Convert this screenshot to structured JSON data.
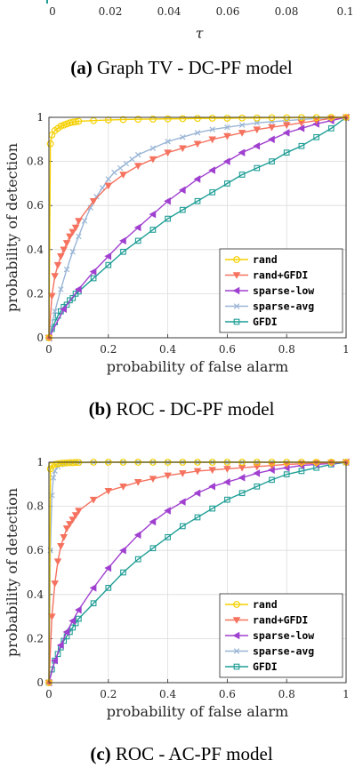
{
  "top_fragment": {
    "xticks": [
      "0",
      "0.02",
      "0.04",
      "0.06",
      "0.08",
      "0.1"
    ],
    "xlabel": "τ",
    "caption_tag": "(a)",
    "caption_text": "Graph TV - DC-PF model"
  },
  "series_colors": {
    "rand": "#f5d000",
    "rand+GFDI": "#f5725f",
    "sparse-low": "#a040d0",
    "sparse-avg": "#9ab5d6",
    "GFDI": "#1f9e96"
  },
  "chart_data": [
    {
      "type": "line",
      "caption_tag": "(b)",
      "caption_text": "ROC - DC-PF model",
      "xlabel": "probability of false alarm",
      "ylabel": "probability of detection",
      "xlim": [
        0,
        1
      ],
      "ylim": [
        0,
        1
      ],
      "xticks": [
        "0",
        "0.2",
        "0.4",
        "0.6",
        "0.8",
        "1"
      ],
      "yticks": [
        "0",
        "0.2",
        "0.4",
        "0.6",
        "0.8",
        "1"
      ],
      "grid": true,
      "legend_position": "bottom-right",
      "series": [
        {
          "name": "rand",
          "marker": "circle",
          "x": [
            0,
            0.005,
            0.01,
            0.02,
            0.03,
            0.04,
            0.05,
            0.06,
            0.07,
            0.08,
            0.09,
            0.1,
            0.15,
            0.2,
            0.25,
            0.3,
            0.35,
            0.4,
            0.45,
            0.5,
            0.55,
            0.6,
            0.65,
            0.7,
            0.75,
            0.8,
            0.85,
            0.9,
            0.95,
            1.0
          ],
          "y": [
            0,
            0.88,
            0.92,
            0.94,
            0.95,
            0.96,
            0.965,
            0.97,
            0.975,
            0.978,
            0.98,
            0.982,
            0.985,
            0.988,
            0.99,
            0.991,
            0.992,
            0.993,
            0.994,
            0.995,
            0.996,
            0.996,
            0.997,
            0.997,
            0.998,
            0.998,
            0.999,
            0.999,
            1.0,
            1.0
          ]
        },
        {
          "name": "rand+GFDI",
          "marker": "triangle-down",
          "x": [
            0,
            0.01,
            0.02,
            0.03,
            0.04,
            0.05,
            0.06,
            0.07,
            0.08,
            0.09,
            0.1,
            0.15,
            0.2,
            0.25,
            0.3,
            0.35,
            0.4,
            0.45,
            0.5,
            0.55,
            0.6,
            0.65,
            0.7,
            0.75,
            0.8,
            0.85,
            0.9,
            0.95,
            1.0
          ],
          "y": [
            0,
            0.19,
            0.28,
            0.33,
            0.37,
            0.4,
            0.43,
            0.46,
            0.48,
            0.5,
            0.53,
            0.62,
            0.69,
            0.74,
            0.78,
            0.81,
            0.84,
            0.86,
            0.88,
            0.9,
            0.915,
            0.93,
            0.945,
            0.955,
            0.965,
            0.975,
            0.985,
            0.995,
            1.0
          ]
        },
        {
          "name": "sparse-low",
          "marker": "triangle-left",
          "x": [
            0,
            0.05,
            0.1,
            0.15,
            0.2,
            0.25,
            0.3,
            0.35,
            0.4,
            0.45,
            0.5,
            0.55,
            0.6,
            0.65,
            0.7,
            0.75,
            0.8,
            0.85,
            0.9,
            0.95,
            1.0
          ],
          "y": [
            0,
            0.13,
            0.22,
            0.3,
            0.37,
            0.44,
            0.5,
            0.56,
            0.62,
            0.67,
            0.72,
            0.76,
            0.8,
            0.84,
            0.87,
            0.9,
            0.93,
            0.95,
            0.97,
            0.985,
            1.0
          ]
        },
        {
          "name": "sparse-avg",
          "marker": "x",
          "x": [
            0,
            0.02,
            0.04,
            0.06,
            0.08,
            0.1,
            0.12,
            0.14,
            0.16,
            0.18,
            0.2,
            0.22,
            0.24,
            0.26,
            0.28,
            0.3,
            0.35,
            0.4,
            0.45,
            0.5,
            0.55,
            0.6,
            0.65,
            0.7,
            0.75,
            0.8,
            0.85,
            0.9,
            0.95,
            1.0
          ],
          "y": [
            0,
            0.12,
            0.22,
            0.31,
            0.39,
            0.46,
            0.53,
            0.59,
            0.64,
            0.68,
            0.72,
            0.75,
            0.77,
            0.79,
            0.81,
            0.83,
            0.86,
            0.89,
            0.91,
            0.93,
            0.945,
            0.955,
            0.965,
            0.975,
            0.98,
            0.985,
            0.99,
            0.995,
            0.998,
            1.0
          ]
        },
        {
          "name": "GFDI",
          "marker": "square",
          "x": [
            0,
            0.01,
            0.02,
            0.03,
            0.04,
            0.05,
            0.06,
            0.07,
            0.08,
            0.09,
            0.1,
            0.15,
            0.2,
            0.25,
            0.3,
            0.35,
            0.4,
            0.45,
            0.5,
            0.55,
            0.6,
            0.65,
            0.7,
            0.75,
            0.8,
            0.85,
            0.9,
            0.95,
            1.0
          ],
          "y": [
            0,
            0.04,
            0.07,
            0.1,
            0.12,
            0.14,
            0.15,
            0.17,
            0.18,
            0.2,
            0.21,
            0.27,
            0.33,
            0.39,
            0.44,
            0.49,
            0.54,
            0.58,
            0.62,
            0.66,
            0.7,
            0.74,
            0.77,
            0.8,
            0.84,
            0.87,
            0.91,
            0.95,
            1.0
          ]
        }
      ]
    },
    {
      "type": "line",
      "caption_tag": "(c)",
      "caption_text": "ROC - AC-PF model",
      "xlabel": "probability of false alarm",
      "ylabel": "probability of detection",
      "xlim": [
        0,
        1
      ],
      "ylim": [
        0,
        1
      ],
      "xticks": [
        "0",
        "0.2",
        "0.4",
        "0.6",
        "0.8",
        "1"
      ],
      "yticks": [
        "0",
        "0.2",
        "0.4",
        "0.6",
        "0.8",
        "1"
      ],
      "grid": true,
      "legend_position": "bottom-right",
      "series": [
        {
          "name": "rand",
          "marker": "circle",
          "x": [
            0,
            0.005,
            0.01,
            0.02,
            0.03,
            0.04,
            0.05,
            0.06,
            0.07,
            0.08,
            0.09,
            0.1,
            0.15,
            0.2,
            0.25,
            0.3,
            0.35,
            0.4,
            0.45,
            0.5,
            0.55,
            0.6,
            0.65,
            0.7,
            0.75,
            0.8,
            0.85,
            0.9,
            0.95,
            1.0
          ],
          "y": [
            0,
            0.97,
            0.985,
            0.99,
            0.993,
            0.995,
            0.996,
            0.997,
            0.998,
            0.998,
            0.999,
            0.999,
            1.0,
            1.0,
            1.0,
            1.0,
            1.0,
            1.0,
            1.0,
            1.0,
            1.0,
            1.0,
            1.0,
            1.0,
            1.0,
            1.0,
            1.0,
            1.0,
            1.0,
            1.0
          ]
        },
        {
          "name": "rand+GFDI",
          "marker": "triangle-down",
          "x": [
            0,
            0.01,
            0.02,
            0.03,
            0.04,
            0.05,
            0.06,
            0.07,
            0.08,
            0.09,
            0.1,
            0.15,
            0.2,
            0.25,
            0.3,
            0.35,
            0.4,
            0.45,
            0.5,
            0.55,
            0.6,
            0.65,
            0.7,
            0.75,
            0.8,
            0.85,
            0.9,
            0.95,
            1.0
          ],
          "y": [
            0,
            0.3,
            0.45,
            0.55,
            0.62,
            0.66,
            0.7,
            0.72,
            0.74,
            0.76,
            0.78,
            0.83,
            0.87,
            0.89,
            0.91,
            0.925,
            0.94,
            0.95,
            0.96,
            0.965,
            0.97,
            0.975,
            0.98,
            0.985,
            0.99,
            0.993,
            0.996,
            0.998,
            1.0
          ]
        },
        {
          "name": "sparse-low",
          "marker": "triangle-left",
          "x": [
            0,
            0.02,
            0.04,
            0.06,
            0.08,
            0.1,
            0.15,
            0.2,
            0.25,
            0.3,
            0.35,
            0.4,
            0.45,
            0.5,
            0.55,
            0.6,
            0.65,
            0.7,
            0.75,
            0.8,
            0.85,
            0.9,
            0.95,
            1.0
          ],
          "y": [
            0,
            0.1,
            0.17,
            0.23,
            0.28,
            0.33,
            0.43,
            0.52,
            0.6,
            0.67,
            0.73,
            0.78,
            0.82,
            0.86,
            0.89,
            0.91,
            0.93,
            0.95,
            0.965,
            0.975,
            0.985,
            0.99,
            0.995,
            1.0
          ]
        },
        {
          "name": "sparse-avg",
          "marker": "x",
          "x": [
            0,
            0.005,
            0.01,
            0.015,
            0.02,
            0.03,
            0.04,
            0.05,
            0.06,
            0.08,
            0.1,
            0.15,
            0.2,
            0.25,
            0.3,
            0.35,
            0.4,
            0.45,
            0.5,
            0.55,
            0.6,
            0.65,
            0.7,
            0.75,
            0.8,
            0.85,
            0.9,
            0.95,
            1.0
          ],
          "y": [
            0,
            0.6,
            0.85,
            0.93,
            0.96,
            0.98,
            0.99,
            0.993,
            0.995,
            0.997,
            0.998,
            0.999,
            1.0,
            1.0,
            1.0,
            1.0,
            1.0,
            1.0,
            1.0,
            1.0,
            1.0,
            1.0,
            1.0,
            1.0,
            1.0,
            1.0,
            1.0,
            1.0,
            1.0
          ]
        },
        {
          "name": "GFDI",
          "marker": "square",
          "x": [
            0,
            0.01,
            0.02,
            0.03,
            0.04,
            0.05,
            0.06,
            0.07,
            0.08,
            0.09,
            0.1,
            0.15,
            0.2,
            0.25,
            0.3,
            0.35,
            0.4,
            0.45,
            0.5,
            0.55,
            0.6,
            0.65,
            0.7,
            0.75,
            0.8,
            0.85,
            0.9,
            0.95,
            1.0
          ],
          "y": [
            0,
            0.06,
            0.1,
            0.13,
            0.16,
            0.19,
            0.21,
            0.23,
            0.25,
            0.27,
            0.29,
            0.36,
            0.43,
            0.5,
            0.56,
            0.61,
            0.66,
            0.71,
            0.75,
            0.79,
            0.83,
            0.86,
            0.89,
            0.92,
            0.945,
            0.96,
            0.975,
            0.99,
            1.0
          ]
        }
      ]
    }
  ]
}
